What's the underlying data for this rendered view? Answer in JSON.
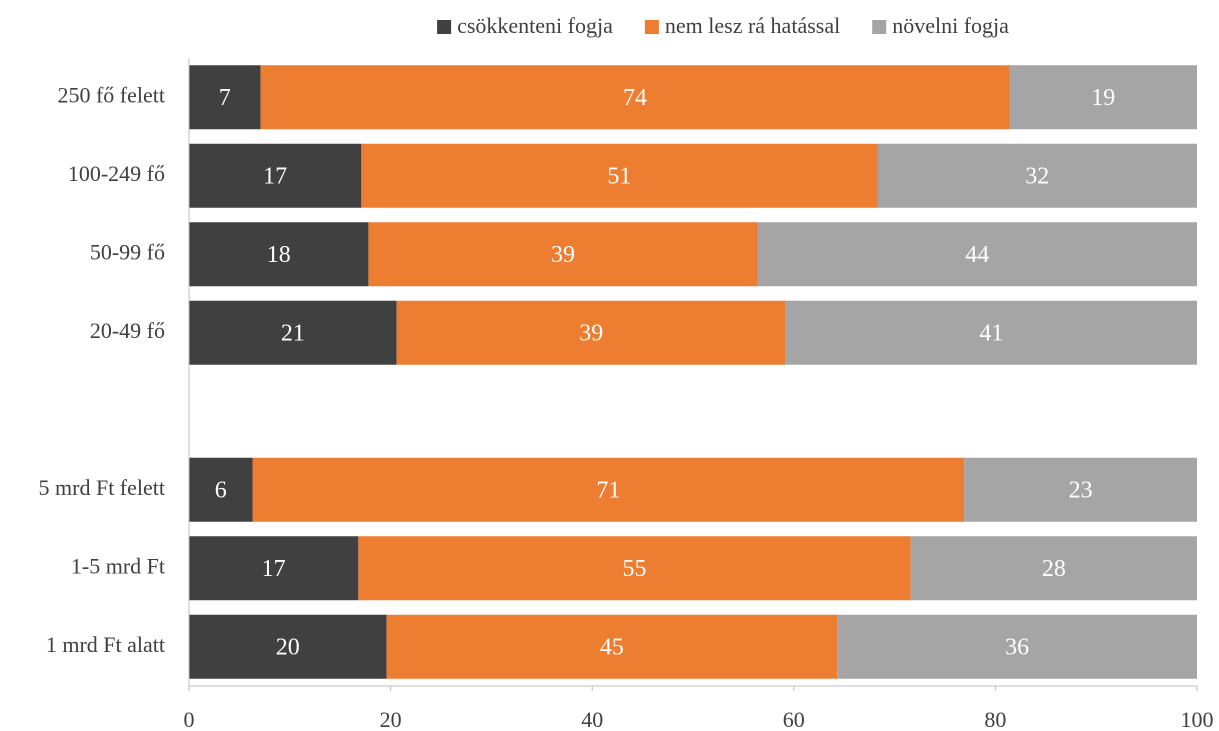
{
  "chart_data": {
    "type": "stacked-bar-horizontal",
    "categories": [
      "250 fő felett",
      "100-249 fő",
      "50-99 fő",
      "20-49 fő",
      null,
      "5 mrd Ft felett",
      "1-5 mrd Ft",
      "1 mrd Ft alatt"
    ],
    "series": [
      {
        "name": "csökkenteni fogja",
        "color": "#404040",
        "values": [
          7.1,
          17.1,
          17.8,
          20.6,
          null,
          6.3,
          16.8,
          19.6
        ],
        "value_labels": [
          "7",
          "17",
          "18",
          "21",
          null,
          "6",
          "17",
          "20"
        ]
      },
      {
        "name": "nem lesz rá hatással",
        "color": "#ed7d31",
        "values": [
          74.3,
          51.2,
          38.6,
          38.6,
          null,
          70.6,
          54.8,
          44.7
        ],
        "value_labels": [
          "74",
          "51",
          "39",
          "39",
          null,
          "71",
          "55",
          "45"
        ]
      },
      {
        "name": "növelni fogja",
        "color": "#a5a5a5",
        "values": [
          18.6,
          31.7,
          43.6,
          40.8,
          null,
          23.1,
          28.4,
          35.7
        ],
        "value_labels": [
          "19",
          "32",
          "44",
          "41",
          null,
          "23",
          "28",
          "36"
        ]
      }
    ],
    "xlim": [
      0,
      100
    ],
    "xticks": [
      0,
      20,
      40,
      60,
      80,
      100
    ],
    "legend": "top"
  }
}
